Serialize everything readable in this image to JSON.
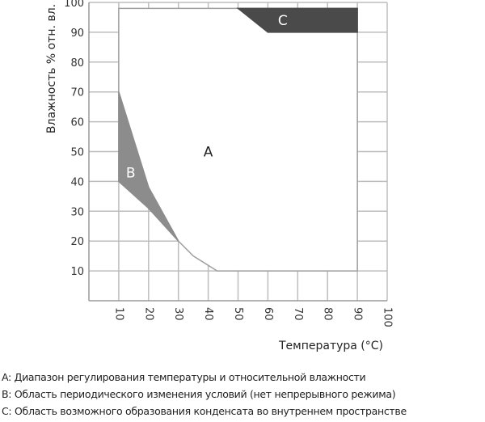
{
  "chart_data": {
    "type": "area",
    "xlabel": "Температура (°C)",
    "ylabel": "Влажность % отн. вл.",
    "xlim": [
      0,
      100
    ],
    "ylim": [
      0,
      100
    ],
    "xticks": [
      "10",
      "20",
      "30",
      "40",
      "50",
      "60",
      "70",
      "80",
      "90",
      "100"
    ],
    "yticks": [
      "10",
      "20",
      "30",
      "40",
      "50",
      "60",
      "70",
      "80",
      "90",
      "100"
    ],
    "grid": true,
    "regions": [
      {
        "label": "A",
        "color": "#ffffff",
        "points": [
          [
            10,
            70
          ],
          [
            10,
            98
          ],
          [
            90,
            98
          ],
          [
            90,
            10
          ],
          [
            43,
            10
          ],
          [
            35,
            15
          ],
          [
            30,
            20
          ],
          [
            20,
            38
          ]
        ]
      },
      {
        "label": "B",
        "color": "#8c8c8c",
        "points": [
          [
            10,
            70
          ],
          [
            20,
            38
          ],
          [
            30,
            20
          ],
          [
            20,
            31
          ],
          [
            10,
            40
          ]
        ]
      },
      {
        "label": "C",
        "color": "#4a4a4a",
        "points": [
          [
            50,
            98
          ],
          [
            90,
            98
          ],
          [
            90,
            90
          ],
          [
            60,
            90
          ]
        ]
      }
    ],
    "label_positions": {
      "A": [
        40,
        50
      ],
      "B": [
        14,
        43
      ],
      "C": [
        65,
        94
      ]
    }
  },
  "legend": [
    "A: Диапазон регулирования температуры и относительной влажности",
    "B: Область периодического изменения условий (нет непрерывного режима)",
    "C: Область возможного образования конденсата во внутреннем пространстве"
  ]
}
